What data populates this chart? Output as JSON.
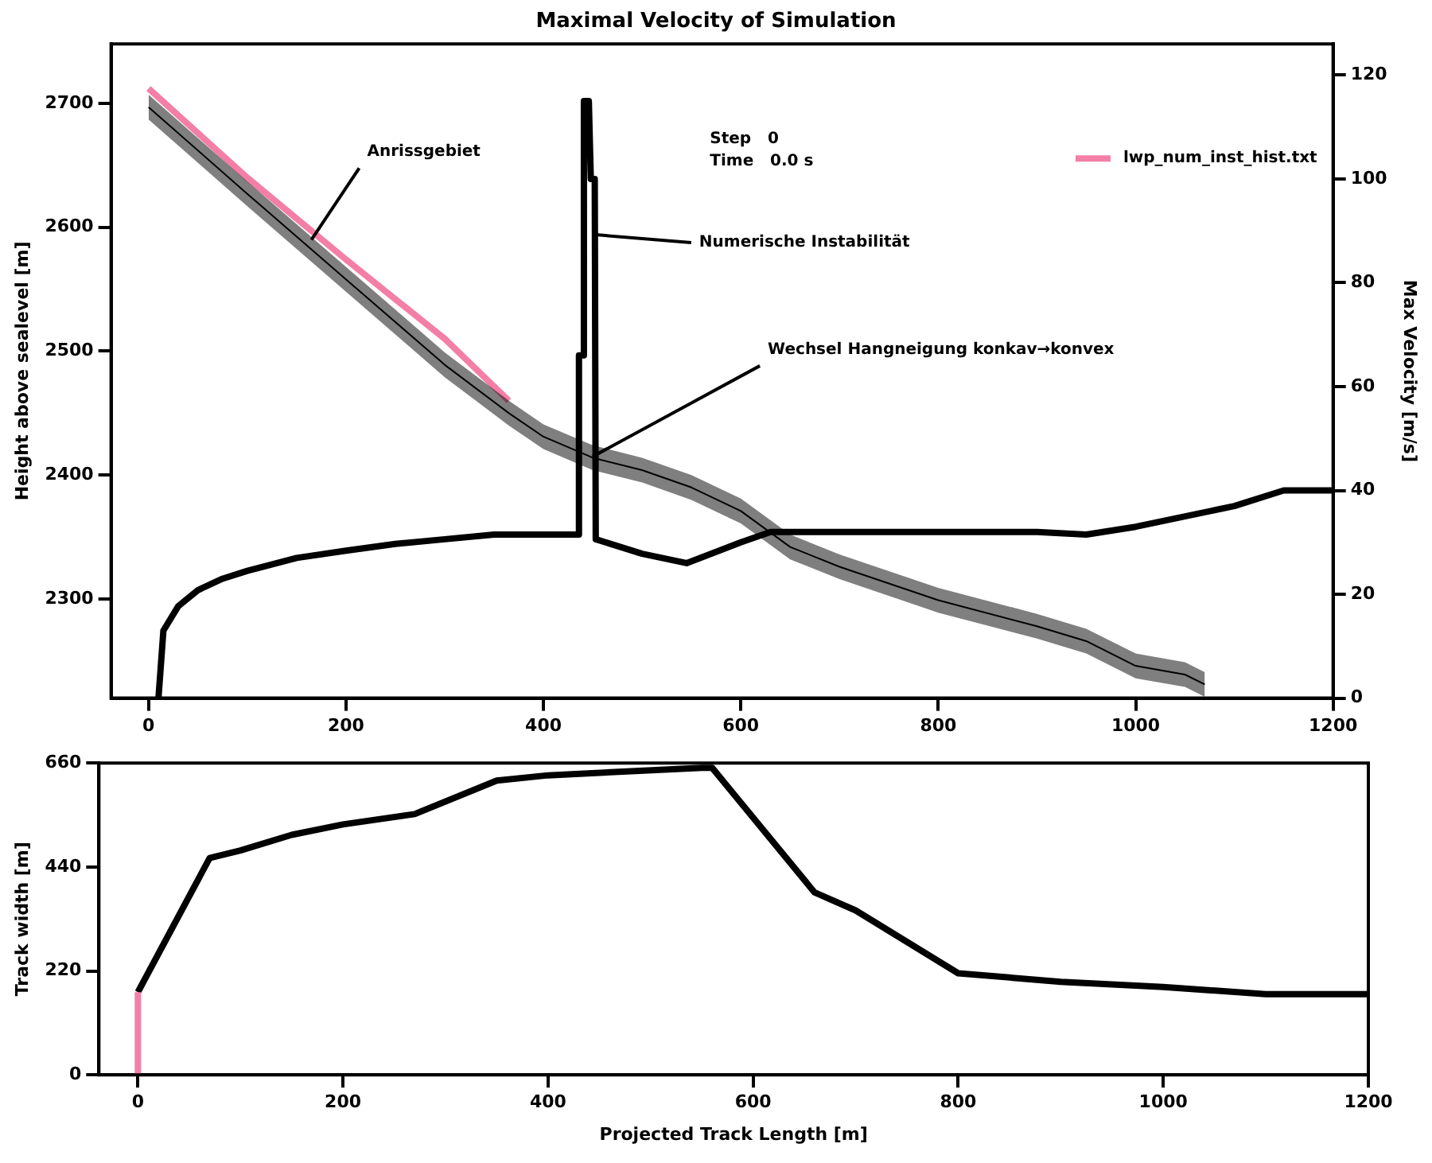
{
  "chart_data": [
    {
      "type": "line",
      "title": "Maximal Velocity of Simulation",
      "ylabel": "Height above sealevel [m]",
      "y2label": "Max Velocity [m/s]",
      "xlim": [
        -38,
        1200
      ],
      "xticks": [
        0,
        200,
        400,
        600,
        800,
        1000,
        1200
      ],
      "ylim": [
        2220,
        2748
      ],
      "yticks": [
        2300,
        2400,
        2500,
        2600,
        2700
      ],
      "y2lim": [
        0,
        126
      ],
      "y2ticks": [
        0,
        20,
        40,
        60,
        80,
        100,
        120
      ],
      "legend": "top right",
      "grid": false,
      "annotations": [
        "Step   0",
        "Time   0.0 s",
        {
          "text": "Anrissgebiet",
          "x": 165,
          "y": 2590
        },
        {
          "text": "Numerische Instabilität",
          "x": 453,
          "y": 2594
        },
        {
          "text": "Wechsel Hangneigung konkav→konvex",
          "x": 450,
          "y": 2415
        }
      ],
      "series": [
        {
          "color": "#000000",
          "x": [
            0,
            100,
            200,
            300,
            365,
            400,
            450,
            500,
            550,
            600,
            650,
            700,
            800,
            900,
            950,
            1000,
            1050,
            1070
          ],
          "values": [
            2697,
            2627,
            2558,
            2489,
            2450,
            2431,
            2414,
            2404,
            2390,
            2371,
            2342,
            2326,
            2299,
            2278,
            2266,
            2246,
            2239,
            2231
          ],
          "lower": [
            2687,
            2617,
            2548,
            2479,
            2440,
            2421,
            2404,
            2394,
            2380,
            2361,
            2332,
            2316,
            2289,
            2268,
            2256,
            2236,
            2229,
            2221
          ],
          "upper": [
            2707,
            2637,
            2568,
            2499,
            2460,
            2441,
            2424,
            2414,
            2400,
            2381,
            2352,
            2336,
            2309,
            2288,
            2276,
            2256,
            2249,
            2241
          ]
        },
        {
          "name": "lwp_num_inst_hist.txt",
          "color": "#f47fa6",
          "x": [
            0,
            100,
            200,
            300,
            365
          ],
          "values": [
            2712,
            2640,
            2574,
            2510,
            2460
          ]
        },
        {
          "axis": "y2",
          "color": "#000000",
          "x": [
            10,
            15,
            30,
            50,
            75,
            100,
            150,
            200,
            250,
            300,
            350,
            400,
            435,
            436,
            440,
            441,
            446,
            448,
            452,
            453,
            500,
            545,
            600,
            630,
            700,
            900,
            950,
            1000,
            1100,
            1150,
            1200
          ],
          "values": [
            0,
            13,
            17.7,
            20.8,
            23,
            24.5,
            27,
            28.4,
            29.7,
            30.6,
            31.5,
            31.5,
            31.5,
            66,
            66,
            115,
            115,
            100,
            100,
            30.6,
            27.8,
            26,
            30,
            32,
            32,
            32,
            31.5,
            33,
            37,
            40,
            40
          ]
        }
      ]
    },
    {
      "type": "line",
      "xlabel": "Projected Track Length [m]",
      "ylabel": "Track width [m]",
      "xlim": [
        -38,
        1200
      ],
      "xticks": [
        0,
        200,
        400,
        600,
        800,
        1000,
        1200
      ],
      "ylim": [
        0,
        660
      ],
      "yticks": [
        0,
        220,
        440,
        660
      ],
      "grid": false,
      "series": [
        {
          "color": "#f47fa6",
          "x": [
            0,
            0
          ],
          "values": [
            0,
            175
          ]
        },
        {
          "color": "#000000",
          "x": [
            0,
            70,
            100,
            150,
            200,
            270,
            350,
            400,
            550,
            560,
            660,
            700,
            800,
            900,
            1000,
            1100,
            1200
          ],
          "values": [
            175,
            459,
            475,
            508,
            530,
            552,
            623,
            634,
            650,
            650,
            386,
            348,
            215,
            197,
            186,
            171,
            171
          ]
        }
      ]
    }
  ]
}
